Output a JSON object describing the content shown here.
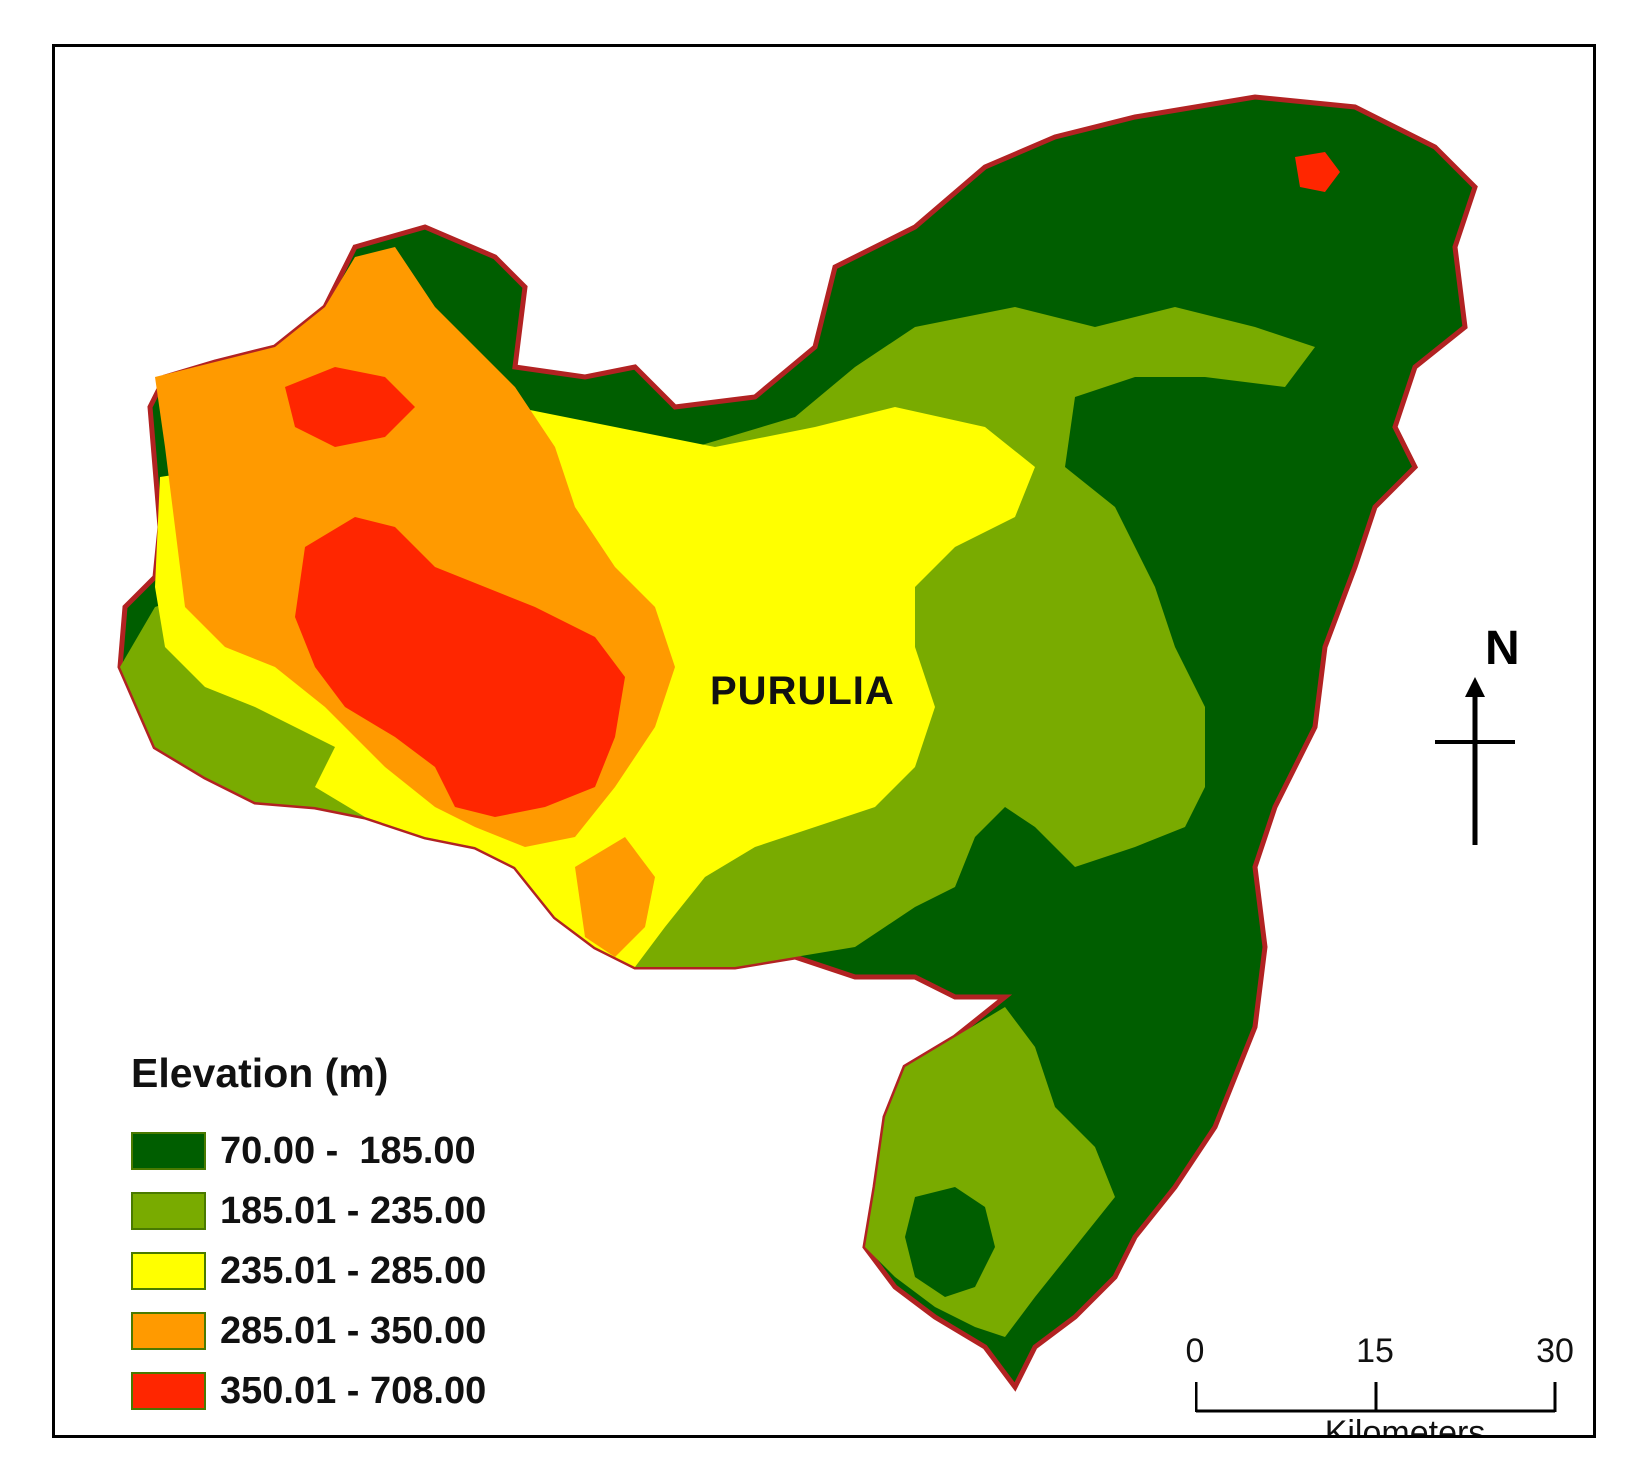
{
  "map": {
    "place_label": "PURULIA",
    "north_label": "N"
  },
  "legend": {
    "title": "Elevation (m)",
    "items": [
      {
        "label": "70.00 -  185.00",
        "color": "#005e00"
      },
      {
        "label": "185.01 - 235.00",
        "color": "#79ab00"
      },
      {
        "label": "235.01 - 285.00",
        "color": "#ffff00"
      },
      {
        "label": "285.01 - 350.00",
        "color": "#ff9a00"
      },
      {
        "label": "350.01 - 708.00",
        "color": "#ff2600"
      }
    ]
  },
  "scale": {
    "ticks": [
      "0",
      "15",
      "30"
    ],
    "units": "Kilometers"
  },
  "colors": {
    "boundary": "#b22222",
    "frame": "#000000"
  }
}
